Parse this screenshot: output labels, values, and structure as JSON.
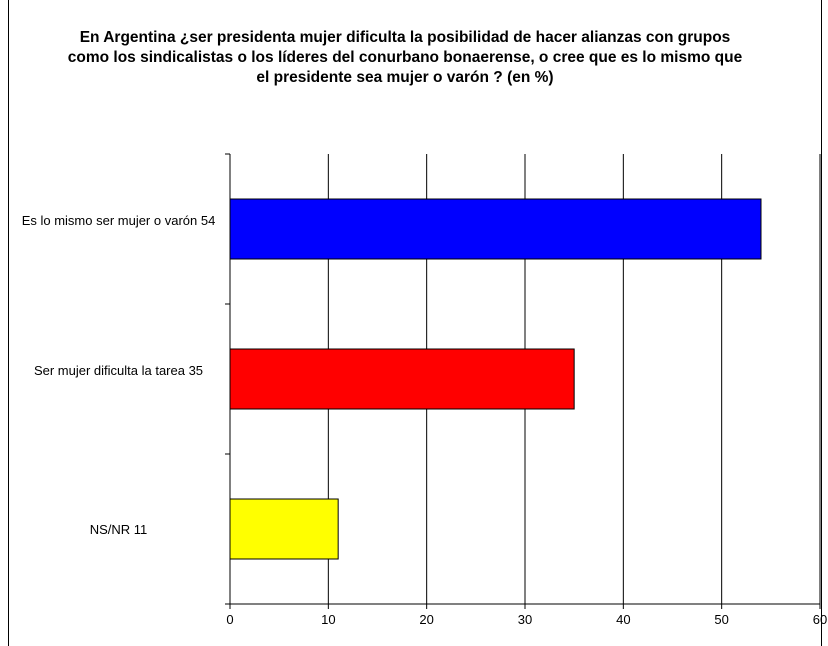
{
  "chart_data": {
    "type": "bar",
    "orientation": "horizontal",
    "title": "En Argentina ¿ser presidenta mujer dificulta la posibilidad de hacer alianzas con grupos como los sindicalistas o los líderes del conurbano bonaerense, o cree que es lo mismo que el presidente sea mujer o varón  ? (en %)",
    "categories": [
      "Es lo mismo ser mujer o varón  54",
      "Ser mujer dificulta la tarea 35",
      "NS/NR  11"
    ],
    "values": [
      54,
      35,
      11
    ],
    "colors": [
      "#0000ff",
      "#ff0000",
      "#ffff00"
    ],
    "xlim": [
      0,
      60
    ],
    "xticks": [
      "0",
      "10",
      "20",
      "30",
      "40",
      "50",
      "60"
    ],
    "grid": true,
    "legend": "none"
  }
}
